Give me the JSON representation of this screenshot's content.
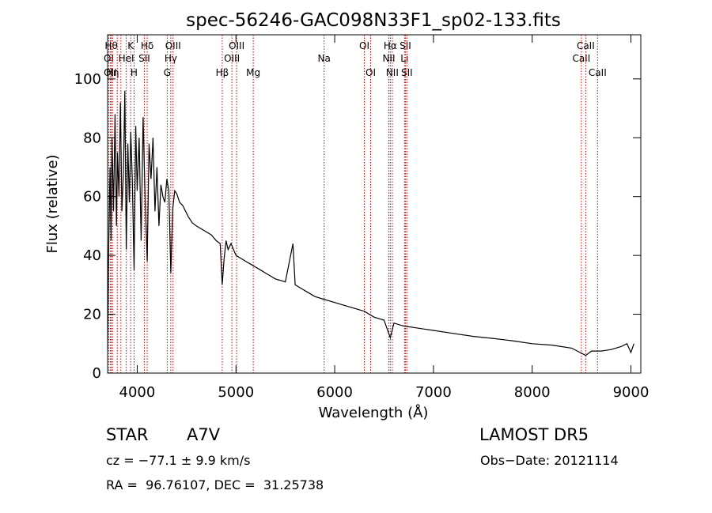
{
  "chart_data": {
    "type": "line",
    "title": "spec-56246-GAC098N33F1_sp02-133.fits",
    "xlabel": "Wavelength (Å)",
    "ylabel": "Flux (relative)",
    "xlim": [
      3700,
      9100
    ],
    "ylim": [
      0,
      115
    ],
    "xticks": [
      4000,
      5000,
      6000,
      7000,
      8000,
      9000
    ],
    "yticks": [
      0,
      20,
      40,
      60,
      80,
      100
    ],
    "grid": false,
    "series": [
      {
        "x": [
          3700,
          3710,
          3725,
          3735,
          3745,
          3760,
          3775,
          3790,
          3800,
          3815,
          3830,
          3845,
          3860,
          3875,
          3889,
          3905,
          3920,
          3935,
          3950,
          3968,
          3985,
          4000,
          4020,
          4040,
          4060,
          4080,
          4101,
          4120,
          4140,
          4160,
          4180,
          4200,
          4220,
          4240,
          4260,
          4280,
          4300,
          4320,
          4340,
          4360,
          4380,
          4400,
          4430,
          4460,
          4490,
          4520,
          4560,
          4600,
          4650,
          4700,
          4750,
          4800,
          4840,
          4861,
          4880,
          4900,
          4920,
          4950,
          5000,
          5050,
          5100,
          5150,
          5200,
          5250,
          5300,
          5400,
          5500,
          5577,
          5600,
          5700,
          5800,
          5900,
          6000,
          6100,
          6200,
          6300,
          6400,
          6500,
          6563,
          6600,
          6700,
          6800,
          6900,
          7000,
          7200,
          7400,
          7600,
          7800,
          8000,
          8200,
          8400,
          8542,
          8600,
          8700,
          8800,
          8900,
          8960,
          9000,
          9030
        ],
        "y": [
          8,
          40,
          70,
          45,
          80,
          55,
          88,
          50,
          75,
          60,
          92,
          55,
          68,
          96,
          42,
          78,
          58,
          82,
          66,
          35,
          84,
          62,
          80,
          45,
          87,
          60,
          38,
          78,
          66,
          80,
          55,
          70,
          50,
          64,
          60,
          58,
          66,
          62,
          34,
          56,
          62,
          61,
          58,
          57,
          55,
          53,
          51,
          50,
          49,
          48,
          47,
          45,
          44,
          30,
          39,
          45,
          42,
          44,
          40,
          39,
          38,
          37,
          36,
          35,
          34,
          32,
          31,
          44,
          30,
          28,
          26,
          25,
          24,
          23,
          22,
          21,
          19,
          18,
          12,
          17,
          16,
          15.5,
          15,
          14.5,
          13.5,
          12.5,
          11.8,
          11,
          10,
          9.5,
          8.5,
          6,
          7.5,
          7.5,
          8,
          9,
          10,
          7,
          10
        ]
      }
    ],
    "lines": [
      {
        "x": 3712,
        "label": "OI",
        "row": 2
      },
      {
        "x": 3727,
        "label": "OII",
        "row": 3
      },
      {
        "x": 3737,
        "label": "Hθ",
        "row": 1
      },
      {
        "x": 3750,
        "label": "Hη",
        "row": 3
      },
      {
        "x": 3798,
        "label": "",
        "row": 0
      },
      {
        "x": 3835,
        "label": "",
        "row": 0
      },
      {
        "x": 3889,
        "label": "HeI",
        "row": 2
      },
      {
        "x": 3934,
        "label": "K",
        "row": 1
      },
      {
        "x": 3968,
        "label": "H",
        "row": 3
      },
      {
        "x": 4072,
        "label": "SII",
        "row": 2
      },
      {
        "x": 4101,
        "label": "Hδ",
        "row": 1
      },
      {
        "x": 4304,
        "label": "G",
        "row": 3
      },
      {
        "x": 4340,
        "label": "Hγ",
        "row": 2
      },
      {
        "x": 4363,
        "label": "OIII",
        "row": 1
      },
      {
        "x": 4861,
        "label": "Hβ",
        "row": 3
      },
      {
        "x": 4959,
        "label": "OIII",
        "row": 2
      },
      {
        "x": 5007,
        "label": "OIII",
        "row": 1
      },
      {
        "x": 5175,
        "label": "Mg",
        "row": 3
      },
      {
        "x": 5893,
        "label": "Na",
        "row": 2
      },
      {
        "x": 6300,
        "label": "OI",
        "row": 1
      },
      {
        "x": 6364,
        "label": "OI",
        "row": 3
      },
      {
        "x": 6548,
        "label": "NII",
        "row": 2
      },
      {
        "x": 6563,
        "label": "Hα",
        "row": 1
      },
      {
        "x": 6583,
        "label": "NII",
        "row": 3
      },
      {
        "x": 6707,
        "label": "Li",
        "row": 2
      },
      {
        "x": 6716,
        "label": "SII",
        "row": 1
      },
      {
        "x": 6731,
        "label": "SII",
        "row": 3
      },
      {
        "x": 8498,
        "label": "CaII",
        "row": 2
      },
      {
        "x": 8542,
        "label": "CaII",
        "row": 1
      },
      {
        "x": 8662,
        "label": "CaII",
        "row": 3
      }
    ]
  },
  "info": {
    "object_type": "STAR",
    "object_class": "A7V",
    "survey": "LAMOST DR5",
    "cz": "cz = −77.1 ± 9.9 km/s",
    "obs_date": "Obs−Date: 20121114",
    "radec": "RA =  96.76107, DEC =  31.25738"
  },
  "colors": {
    "line": "#000000",
    "marker": "#cc0000",
    "background": "#ffffff"
  }
}
